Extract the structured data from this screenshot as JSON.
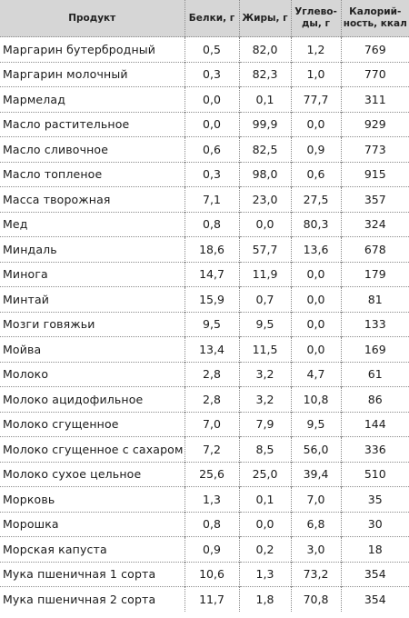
{
  "table": {
    "headers": {
      "name": "Продукт",
      "protein": "Белки, г",
      "fat": "Жиры, г",
      "carbs": [
        "Углево-",
        "ды, г"
      ],
      "calories": [
        "Калорий-",
        "ность, ккал"
      ]
    },
    "rows": [
      {
        "name": "Маргарин бутербродный",
        "protein": "0,5",
        "fat": "82,0",
        "carbs": "1,2",
        "calories": "769"
      },
      {
        "name": "Маргарин молочный",
        "protein": "0,3",
        "fat": "82,3",
        "carbs": "1,0",
        "calories": "770"
      },
      {
        "name": "Мармелад",
        "protein": "0,0",
        "fat": "0,1",
        "carbs": "77,7",
        "calories": "311"
      },
      {
        "name": "Масло растительное",
        "protein": "0,0",
        "fat": "99,9",
        "carbs": "0,0",
        "calories": "929"
      },
      {
        "name": "Масло сливочное",
        "protein": "0,6",
        "fat": "82,5",
        "carbs": "0,9",
        "calories": "773"
      },
      {
        "name": "Масло топленое",
        "protein": "0,3",
        "fat": "98,0",
        "carbs": "0,6",
        "calories": "915"
      },
      {
        "name": "Масса творожная",
        "protein": "7,1",
        "fat": "23,0",
        "carbs": "27,5",
        "calories": "357"
      },
      {
        "name": "Мед",
        "protein": "0,8",
        "fat": "0,0",
        "carbs": "80,3",
        "calories": "324"
      },
      {
        "name": "Миндаль",
        "protein": "18,6",
        "fat": "57,7",
        "carbs": "13,6",
        "calories": "678"
      },
      {
        "name": "Минога",
        "protein": "14,7",
        "fat": "11,9",
        "carbs": "0,0",
        "calories": "179"
      },
      {
        "name": "Минтай",
        "protein": "15,9",
        "fat": "0,7",
        "carbs": "0,0",
        "calories": "81"
      },
      {
        "name": "Мозги говяжьи",
        "protein": "9,5",
        "fat": "9,5",
        "carbs": "0,0",
        "calories": "133"
      },
      {
        "name": "Мойва",
        "protein": "13,4",
        "fat": "11,5",
        "carbs": "0,0",
        "calories": "169"
      },
      {
        "name": "Молоко",
        "protein": "2,8",
        "fat": "3,2",
        "carbs": "4,7",
        "calories": "61"
      },
      {
        "name": "Молоко ацидофильное",
        "protein": "2,8",
        "fat": "3,2",
        "carbs": "10,8",
        "calories": "86"
      },
      {
        "name": "Молоко сгущенное",
        "protein": "7,0",
        "fat": "7,9",
        "carbs": "9,5",
        "calories": "144"
      },
      {
        "name": "Молоко сгущенное с сахаром",
        "protein": "7,2",
        "fat": "8,5",
        "carbs": "56,0",
        "calories": "336"
      },
      {
        "name": "Молоко сухое цельное",
        "protein": "25,6",
        "fat": "25,0",
        "carbs": "39,4",
        "calories": "510"
      },
      {
        "name": "Морковь",
        "protein": "1,3",
        "fat": "0,1",
        "carbs": "7,0",
        "calories": "35"
      },
      {
        "name": "Морошка",
        "protein": "0,8",
        "fat": "0,0",
        "carbs": "6,8",
        "calories": "30"
      },
      {
        "name": "Морская капуста",
        "protein": "0,9",
        "fat": "0,2",
        "carbs": "3,0",
        "calories": "18"
      },
      {
        "name": "Мука пшеничная 1 сорта",
        "protein": "10,6",
        "fat": "1,3",
        "carbs": "73,2",
        "calories": "354"
      },
      {
        "name": "Мука пшеничная 2 сорта",
        "protein": "11,7",
        "fat": "1,8",
        "carbs": "70,8",
        "calories": "354"
      }
    ]
  }
}
